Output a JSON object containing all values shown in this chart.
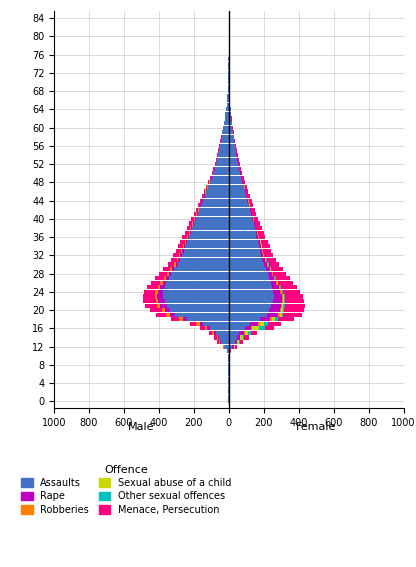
{
  "xlim": [
    -1000,
    1000
  ],
  "xticks": [
    -1000,
    -800,
    -600,
    -400,
    -200,
    0,
    200,
    400,
    600,
    800,
    1000
  ],
  "xticklabels": [
    "1000",
    "800",
    "600",
    "400",
    "200",
    "0",
    "200",
    "400",
    "600",
    "800",
    "1000"
  ],
  "ytick_vals": [
    0,
    4,
    8,
    12,
    16,
    20,
    24,
    28,
    32,
    36,
    40,
    44,
    48,
    52,
    56,
    60,
    64,
    68,
    72,
    76,
    80,
    84
  ],
  "bar_height": 0.9,
  "colors": {
    "Assaults": "#4472C4",
    "Rape": "#c000c0",
    "Robberies": "#FF8000",
    "Sexual abuse of a child": "#c8d800",
    "Other sexual offences": "#00c0c0",
    "Menace, Persecution": "#FF007F"
  },
  "xlabel_male": "Male",
  "xlabel_female": "Female",
  "legend_title": "Offence",
  "offense_order": [
    "Assaults",
    "Rape",
    "Robberies",
    "Sexual abuse of a child",
    "Other sexual offences",
    "Menace, Persecution"
  ],
  "male": {
    "Assaults": [
      2,
      2,
      3,
      3,
      4,
      4,
      5,
      5,
      5,
      6,
      7,
      9,
      25,
      45,
      55,
      75,
      110,
      150,
      240,
      310,
      335,
      355,
      365,
      375,
      375,
      368,
      358,
      342,
      328,
      312,
      292,
      278,
      268,
      258,
      248,
      238,
      228,
      218,
      208,
      198,
      188,
      178,
      168,
      158,
      148,
      138,
      128,
      118,
      108,
      98,
      88,
      80,
      73,
      67,
      61,
      56,
      51,
      46,
      41,
      37,
      32,
      28,
      23,
      19,
      16,
      13,
      11,
      9,
      7,
      6,
      5,
      4,
      3,
      3,
      2,
      2,
      1,
      1,
      1,
      1,
      1,
      0,
      0,
      0
    ],
    "Rape": [
      0,
      0,
      0,
      0,
      0,
      0,
      0,
      0,
      0,
      0,
      0,
      0,
      4,
      7,
      9,
      11,
      13,
      17,
      22,
      27,
      32,
      37,
      38,
      34,
      29,
      24,
      20,
      17,
      14,
      12,
      11,
      10,
      9,
      8,
      8,
      7,
      7,
      6,
      6,
      5,
      5,
      4,
      4,
      4,
      3,
      3,
      3,
      3,
      2,
      2,
      2,
      2,
      1,
      1,
      1,
      1,
      1,
      1,
      0,
      0,
      0,
      0,
      0,
      0,
      0,
      0,
      0,
      0,
      0,
      0,
      0,
      0,
      0,
      0,
      0,
      0,
      0,
      0,
      0,
      0,
      0,
      0,
      0,
      0
    ],
    "Robberies": [
      0,
      0,
      0,
      0,
      0,
      0,
      0,
      0,
      0,
      0,
      0,
      0,
      2,
      3,
      5,
      8,
      14,
      18,
      22,
      22,
      18,
      18,
      14,
      16,
      18,
      16,
      14,
      13,
      11,
      11,
      9,
      9,
      9,
      8,
      7,
      7,
      7,
      6,
      6,
      5,
      5,
      4,
      4,
      4,
      3,
      3,
      3,
      2,
      2,
      2,
      2,
      1,
      1,
      1,
      1,
      1,
      0,
      0,
      0,
      0,
      0,
      0,
      0,
      0,
      0,
      0,
      0,
      0,
      0,
      0,
      0,
      0,
      0,
      0,
      0,
      0,
      0,
      0,
      0,
      0,
      0,
      0,
      0,
      0
    ],
    "Sexual abuse of a child": [
      0,
      0,
      0,
      0,
      0,
      0,
      0,
      0,
      0,
      0,
      0,
      0,
      0,
      0,
      0,
      0,
      0,
      0,
      0,
      0,
      0,
      0,
      0,
      0,
      0,
      0,
      0,
      0,
      0,
      0,
      0,
      0,
      0,
      0,
      0,
      0,
      0,
      0,
      0,
      0,
      0,
      0,
      0,
      0,
      0,
      0,
      0,
      0,
      0,
      0,
      0,
      0,
      0,
      0,
      0,
      0,
      0,
      0,
      0,
      0,
      0,
      0,
      0,
      0,
      0,
      0,
      0,
      0,
      0,
      0,
      0,
      0,
      0,
      0,
      0,
      0,
      0,
      0,
      0,
      0,
      0,
      0,
      0,
      0
    ],
    "Other sexual offences": [
      0,
      0,
      0,
      0,
      0,
      0,
      0,
      0,
      0,
      0,
      0,
      0,
      0,
      0,
      0,
      0,
      0,
      0,
      0,
      0,
      0,
      0,
      0,
      0,
      0,
      0,
      0,
      0,
      0,
      0,
      0,
      0,
      0,
      0,
      0,
      0,
      0,
      0,
      0,
      0,
      0,
      0,
      0,
      0,
      0,
      0,
      0,
      0,
      0,
      0,
      0,
      0,
      0,
      0,
      0,
      0,
      0,
      0,
      0,
      0,
      0,
      0,
      0,
      0,
      0,
      0,
      0,
      0,
      0,
      0,
      0,
      0,
      0,
      0,
      0,
      0,
      0,
      0,
      0,
      0,
      0,
      0,
      0,
      0
    ],
    "Menace, Persecution": [
      0,
      0,
      0,
      0,
      0,
      0,
      0,
      0,
      0,
      0,
      0,
      2,
      5,
      10,
      14,
      20,
      28,
      35,
      48,
      57,
      65,
      70,
      72,
      68,
      65,
      60,
      55,
      50,
      46,
      42,
      38,
      35,
      33,
      30,
      28,
      26,
      24,
      22,
      20,
      18,
      16,
      14,
      13,
      12,
      11,
      10,
      9,
      8,
      7,
      6,
      5,
      5,
      4,
      4,
      3,
      3,
      2,
      2,
      2,
      1,
      1,
      1,
      0,
      0,
      0,
      0,
      0,
      0,
      0,
      0,
      0,
      0,
      0,
      0,
      0,
      0,
      0,
      0,
      0,
      0,
      0,
      0,
      0,
      0
    ]
  },
  "female": {
    "Assaults": [
      2,
      2,
      3,
      3,
      4,
      4,
      5,
      5,
      5,
      6,
      7,
      9,
      20,
      35,
      45,
      60,
      92,
      122,
      180,
      220,
      232,
      242,
      252,
      260,
      255,
      250,
      242,
      232,
      222,
      212,
      202,
      192,
      182,
      177,
      172,
      167,
      158,
      153,
      148,
      142,
      134,
      127,
      120,
      113,
      107,
      100,
      93,
      86,
      78,
      72,
      65,
      59,
      54,
      49,
      44,
      40,
      36,
      32,
      28,
      25,
      21,
      18,
      15,
      12,
      10,
      8,
      7,
      6,
      5,
      4,
      3,
      3,
      2,
      2,
      1,
      1,
      1,
      1,
      0,
      0,
      0,
      0,
      0,
      0
    ],
    "Rape": [
      0,
      0,
      0,
      0,
      0,
      0,
      0,
      0,
      0,
      0,
      0,
      0,
      7,
      12,
      18,
      25,
      35,
      45,
      55,
      60,
      60,
      55,
      50,
      45,
      40,
      35,
      30,
      27,
      24,
      21,
      18,
      16,
      14,
      13,
      12,
      11,
      9,
      9,
      8,
      7,
      7,
      6,
      5,
      5,
      5,
      4,
      4,
      3,
      3,
      3,
      2,
      2,
      2,
      1,
      1,
      1,
      1,
      1,
      0,
      0,
      0,
      0,
      0,
      0,
      0,
      0,
      0,
      0,
      0,
      0,
      0,
      0,
      0,
      0,
      0,
      0,
      0,
      0,
      0,
      0,
      0,
      0,
      0,
      0
    ],
    "Robberies": [
      0,
      0,
      0,
      0,
      0,
      0,
      0,
      0,
      0,
      0,
      0,
      0,
      1,
      2,
      3,
      5,
      7,
      9,
      11,
      11,
      9,
      9,
      7,
      7,
      7,
      6,
      6,
      5,
      5,
      5,
      4,
      4,
      4,
      3,
      3,
      3,
      3,
      3,
      2,
      2,
      2,
      2,
      2,
      1,
      1,
      1,
      1,
      1,
      1,
      1,
      1,
      0,
      0,
      0,
      0,
      0,
      0,
      0,
      0,
      0,
      0,
      0,
      0,
      0,
      0,
      0,
      0,
      0,
      0,
      0,
      0,
      0,
      0,
      0,
      0,
      0,
      0,
      0,
      0,
      0,
      0,
      0,
      0,
      0
    ],
    "Sexual abuse of a child": [
      0,
      0,
      0,
      0,
      0,
      0,
      0,
      0,
      0,
      0,
      0,
      0,
      5,
      9,
      14,
      22,
      40,
      28,
      20,
      13,
      9,
      7,
      6,
      5,
      5,
      4,
      3,
      3,
      2,
      2,
      2,
      2,
      1,
      1,
      1,
      1,
      1,
      1,
      0,
      0,
      0,
      0,
      0,
      0,
      0,
      0,
      0,
      0,
      0,
      0,
      0,
      0,
      0,
      0,
      0,
      0,
      0,
      0,
      0,
      0,
      0,
      0,
      0,
      0,
      0,
      0,
      0,
      0,
      0,
      0,
      0,
      0,
      0,
      0,
      0,
      0,
      0,
      0,
      0,
      0,
      0,
      0,
      0,
      0
    ],
    "Other sexual offences": [
      0,
      0,
      0,
      0,
      0,
      0,
      0,
      0,
      0,
      0,
      0,
      0,
      3,
      6,
      9,
      14,
      32,
      22,
      15,
      9,
      7,
      6,
      5,
      5,
      4,
      4,
      3,
      3,
      2,
      2,
      2,
      2,
      1,
      1,
      1,
      1,
      1,
      1,
      0,
      0,
      0,
      0,
      0,
      0,
      0,
      0,
      0,
      0,
      0,
      0,
      0,
      0,
      0,
      0,
      0,
      0,
      0,
      0,
      0,
      0,
      0,
      0,
      0,
      0,
      0,
      0,
      0,
      0,
      0,
      0,
      0,
      0,
      0,
      0,
      0,
      0,
      0,
      0,
      0,
      0,
      0,
      0,
      0,
      0
    ],
    "Menace, Persecution": [
      0,
      0,
      0,
      0,
      0,
      0,
      0,
      0,
      0,
      0,
      0,
      2,
      10,
      17,
      24,
      35,
      55,
      72,
      92,
      105,
      115,
      118,
      112,
      105,
      98,
      92,
      85,
      78,
      72,
      66,
      60,
      55,
      52,
      48,
      44,
      41,
      37,
      34,
      31,
      28,
      26,
      23,
      21,
      19,
      17,
      16,
      14,
      13,
      11,
      10,
      9,
      8,
      7,
      6,
      5,
      5,
      4,
      3,
      3,
      2,
      2,
      1,
      1,
      1,
      1,
      0,
      0,
      0,
      0,
      0,
      0,
      0,
      0,
      0,
      0,
      0,
      0,
      0,
      0,
      0,
      0,
      0,
      0,
      0
    ]
  }
}
